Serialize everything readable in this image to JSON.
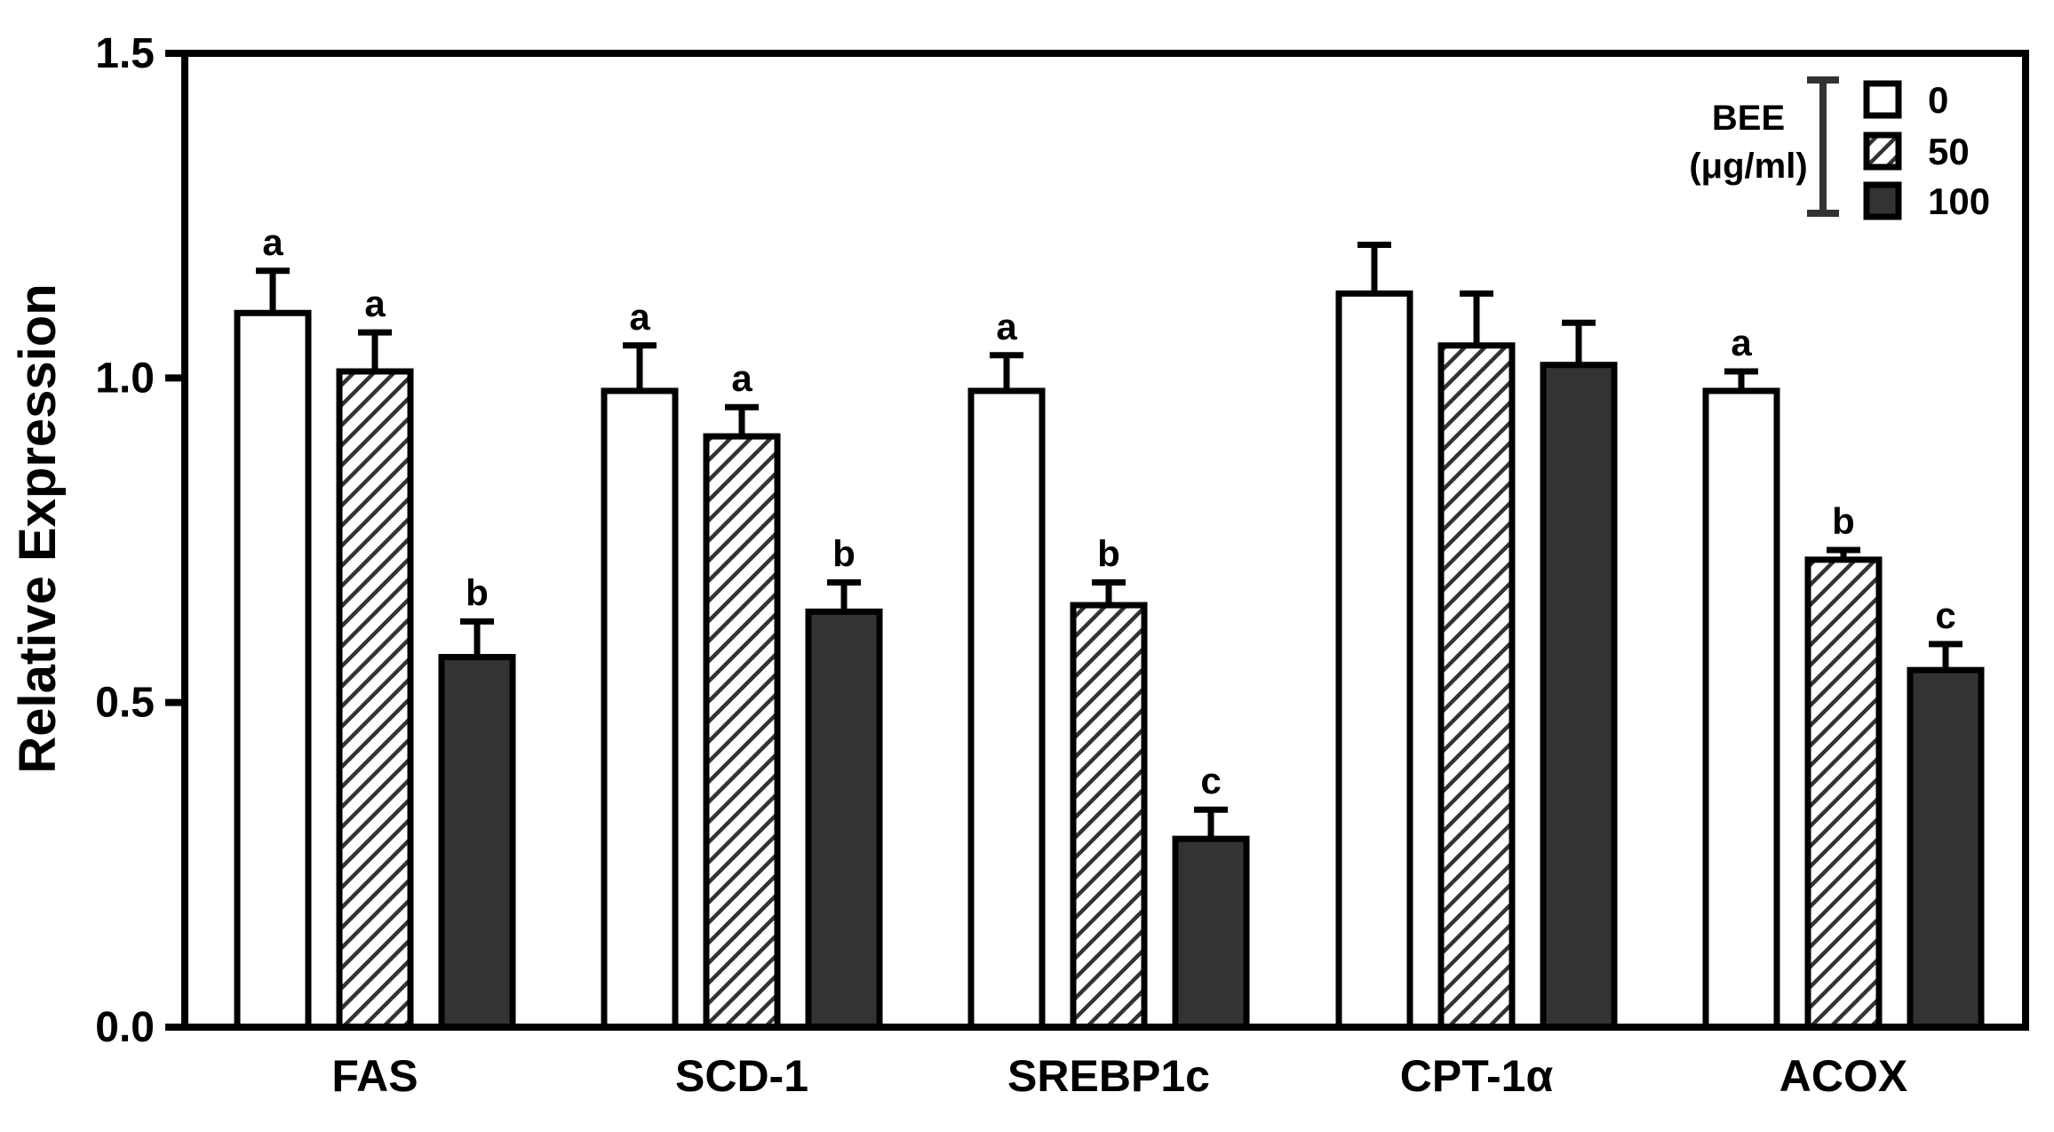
{
  "chart_data": {
    "type": "bar",
    "title": "",
    "xlabel": "",
    "ylabel": "Relative Expression",
    "ylim": [
      0,
      1.5
    ],
    "yticks": [
      0.0,
      0.5,
      1.0,
      1.5
    ],
    "ytick_labels": [
      "0.0",
      "0.5",
      "1.0",
      "1.5"
    ],
    "categories": [
      "FAS",
      "SCD-1",
      "SREBP1c",
      "CPT-1α",
      "ACOX"
    ],
    "series": [
      {
        "name": "0",
        "pattern": "open",
        "values": [
          1.1,
          0.98,
          0.98,
          1.13,
          0.98
        ],
        "errors": [
          0.065,
          0.07,
          0.055,
          0.075,
          0.03
        ],
        "letters": [
          "a",
          "a",
          "a",
          "",
          "a"
        ]
      },
      {
        "name": "50",
        "pattern": "hatched",
        "values": [
          1.01,
          0.91,
          0.65,
          1.05,
          0.72
        ],
        "errors": [
          0.06,
          0.045,
          0.035,
          0.08,
          0.015
        ],
        "letters": [
          "a",
          "a",
          "b",
          "",
          "b"
        ]
      },
      {
        "name": "100",
        "pattern": "solid",
        "values": [
          0.57,
          0.64,
          0.29,
          1.02,
          0.55
        ],
        "errors": [
          0.055,
          0.045,
          0.045,
          0.065,
          0.04
        ],
        "letters": [
          "b",
          "b",
          "c",
          "",
          "c"
        ]
      }
    ],
    "legend": {
      "title_line1": "BEE",
      "title_line2": "(μg/ml)",
      "position": "top-right"
    },
    "colors": {
      "open": "#ffffff",
      "solid": "#333333",
      "hatch_line": "#333333",
      "axis": "#000000"
    }
  }
}
